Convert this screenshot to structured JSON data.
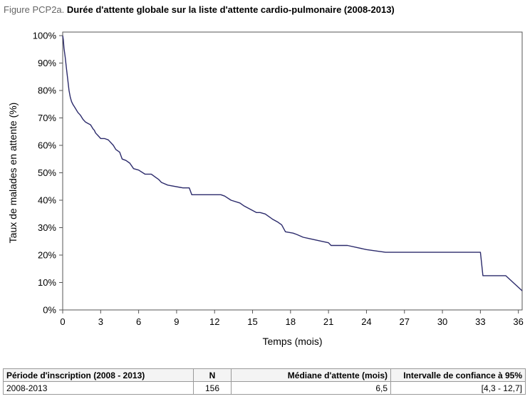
{
  "figure": {
    "prefix": "Figure PCP2a.",
    "title": "Durée d'attente globale sur la liste d'attente cardio-pulmonaire (2008-2013)"
  },
  "chart_data": {
    "type": "line",
    "step": true,
    "xlabel": "Temps (mois)",
    "ylabel": "Taux de malades en attente (%)",
    "xlim": [
      0,
      36.3
    ],
    "ylim": [
      0,
      100
    ],
    "xticks": [
      0,
      3,
      6,
      9,
      12,
      15,
      18,
      21,
      24,
      27,
      30,
      33,
      36
    ],
    "yticks": [
      0,
      10,
      20,
      30,
      40,
      50,
      60,
      70,
      80,
      90,
      100
    ],
    "yticklabels": [
      "0%",
      "10%",
      "20%",
      "30%",
      "40%",
      "50%",
      "60%",
      "70%",
      "80%",
      "90%",
      "100%"
    ],
    "grid": false,
    "line_color": "#2b2a6b",
    "series": [
      {
        "x": [
          0,
          0.05,
          0.1,
          0.2,
          0.3,
          0.4,
          0.5,
          0.6,
          0.7,
          0.8,
          1.0,
          1.2,
          1.4,
          1.6,
          1.8,
          2.0,
          2.2,
          2.4,
          2.5,
          2.6,
          2.8,
          3.0,
          3.3,
          3.6,
          4.0,
          4.2,
          4.5,
          4.7,
          5.0,
          5.3,
          5.6,
          6.0,
          6.5,
          7.0,
          7.3,
          7.6,
          7.8,
          8.3,
          9.5,
          10.0,
          10.2,
          12.5,
          12.8,
          13.3,
          14.0,
          14.3,
          15.3,
          15.6,
          16.0,
          16.3,
          16.6,
          17.0,
          17.3,
          17.6,
          18.2,
          18.5,
          19.0,
          19.5,
          20.5,
          21.0,
          21.2,
          22.5,
          24.0,
          25.5,
          30.0,
          33.0,
          33.2,
          35.0,
          36.3
        ],
        "y": [
          100,
          98.5,
          95.5,
          92,
          88,
          84,
          80,
          77.5,
          76,
          75,
          73.5,
          72,
          71,
          69.5,
          68.5,
          68,
          67.5,
          66,
          65.5,
          64.5,
          63.5,
          62.5,
          62.5,
          62,
          60,
          58.5,
          57.5,
          55,
          54.5,
          53.5,
          51.5,
          51,
          49.5,
          49.5,
          48.5,
          47.5,
          46.5,
          45.5,
          44.5,
          44.5,
          42,
          42,
          41.5,
          40,
          39,
          38,
          35.5,
          35.5,
          35,
          34,
          33,
          32,
          31,
          28.5,
          28,
          27.5,
          26.5,
          26,
          25,
          24.5,
          23.5,
          23.5,
          22,
          21,
          21,
          21,
          12.5,
          12.5,
          7
        ]
      }
    ]
  },
  "table": {
    "headers": [
      "Période d'inscription (2008 - 2013)",
      "N",
      "Médiane d'attente (mois)",
      "Intervalle de confiance à 95%"
    ],
    "rows": [
      [
        "2008-2013",
        "156",
        "6,5",
        "[4,3 - 12,7]"
      ]
    ]
  }
}
